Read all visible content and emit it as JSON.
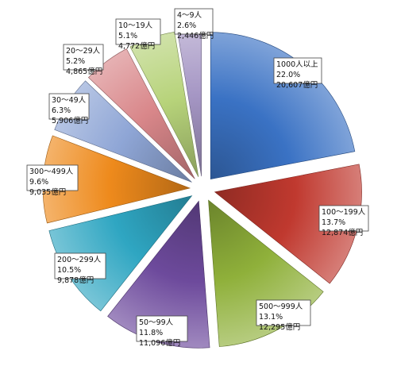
{
  "chart_data": {
    "type": "pie",
    "title": "",
    "exploded": true,
    "slices": [
      {
        "category": "1000人以上",
        "percent": "22.0%",
        "amount": "20,607億円",
        "value": 20607,
        "color": "#3a72c4"
      },
      {
        "category": "100～199人",
        "percent": "13.7%",
        "amount": "12,874億円",
        "value": 12874,
        "color": "#c0392f"
      },
      {
        "category": "500～999人",
        "percent": "13.1%",
        "amount": "12,295億円",
        "value": 12295,
        "color": "#8fb03a"
      },
      {
        "category": "50～99人",
        "percent": "11.8%",
        "amount": "11,096億円",
        "value": 11096,
        "color": "#6d4a9c"
      },
      {
        "category": "200～299人",
        "percent": "10.5%",
        "amount": "9,878億円",
        "value": 9878,
        "color": "#2fa6c2"
      },
      {
        "category": "300～499人",
        "percent": "9.6%",
        "amount": "9,035億円",
        "value": 9035,
        "color": "#ee8a1c"
      },
      {
        "category": "30～49人",
        "percent": "6.3%",
        "amount": "5,906億円",
        "value": 5906,
        "color": "#8fa6d6"
      },
      {
        "category": "20～29人",
        "percent": "5.2%",
        "amount": "4,865億円",
        "value": 4865,
        "color": "#d9878a"
      },
      {
        "category": "10～19人",
        "percent": "5.1%",
        "amount": "4,772億円",
        "value": 4772,
        "color": "#b7d37a"
      },
      {
        "category": "4～9人",
        "percent": "2.6%",
        "amount": "2,446億円",
        "value": 2446,
        "color": "#a596c4"
      }
    ]
  }
}
